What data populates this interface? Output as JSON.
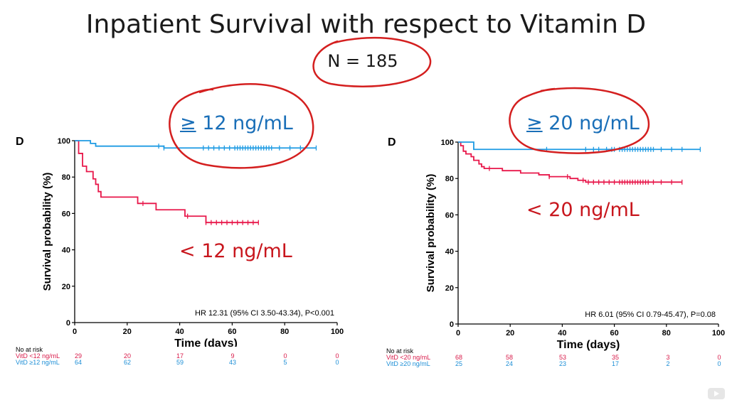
{
  "title": "Inpatient Survival with respect to Vitamin D",
  "n_label": "N = 185",
  "panels": [
    {
      "letter": "D",
      "ylabel": "Survival probability (%)",
      "xlabel": "Time (days)",
      "hr_text": "HR 12.31 (95% CI 3.50-43.34), P<0.001",
      "note_high": {
        "symbol": "≥",
        "rest": " 12 ng/mL"
      },
      "note_low": "< 12 ng/mL",
      "risk": {
        "header": "No at risk",
        "rows": [
          {
            "label": "VitD <12 ng/mL",
            "values": [
              "29",
              "20",
              "17",
              "9",
              "0",
              "0"
            ]
          },
          {
            "label": "VitD ≥12 ng/mL",
            "values": [
              "64",
              "62",
              "59",
              "43",
              "5",
              "0"
            ]
          }
        ]
      }
    },
    {
      "letter": "D",
      "ylabel": "Survival probability (%)",
      "xlabel": "Time (days)",
      "hr_text": "HR 6.01 (95% CI 0.79-45.47), P=0.08",
      "note_high": {
        "symbol": "≥",
        "rest": " 20 ng/mL"
      },
      "note_low": "< 20 ng/mL",
      "risk": {
        "header": "No at risk",
        "rows": [
          {
            "label": "VitD <20 ng/mL",
            "values": [
              "68",
              "58",
              "53",
              "35",
              "3",
              "0"
            ]
          },
          {
            "label": "VitD ≥20 ng/mL",
            "values": [
              "25",
              "24",
              "23",
              "17",
              "2",
              "0"
            ]
          }
        ]
      }
    }
  ],
  "colors": {
    "low": "#e8174a",
    "high": "#1e9be3",
    "annotation": "#d41f1f"
  },
  "chart_data": [
    {
      "type": "line",
      "title": "",
      "xlabel": "Time (days)",
      "ylabel": "Survival probability (%)",
      "xlim": [
        0,
        100
      ],
      "ylim": [
        0,
        100
      ],
      "xticks": [
        0,
        20,
        40,
        60,
        80,
        100
      ],
      "yticks": [
        0,
        20,
        40,
        60,
        80,
        100
      ],
      "series": [
        {
          "name": "VitD <12 ng/mL",
          "color": "#e8174a",
          "steps": [
            [
              0,
              100
            ],
            [
              1.5,
              93
            ],
            [
              3,
              86
            ],
            [
              4.5,
              83
            ],
            [
              7,
              79
            ],
            [
              8,
              76
            ],
            [
              9,
              72
            ],
            [
              10,
              69
            ],
            [
              19,
              69
            ],
            [
              24,
              65.5
            ],
            [
              31,
              65.5
            ],
            [
              31,
              62
            ],
            [
              42,
              62
            ],
            [
              42,
              58.5
            ],
            [
              50,
              58.5
            ],
            [
              50,
              55
            ],
            [
              70,
              55
            ]
          ],
          "censored": [
            26,
            43,
            50,
            52,
            54,
            56,
            58,
            60,
            62,
            64,
            66,
            68,
            70
          ]
        },
        {
          "name": "VitD ≥12 ng/mL",
          "color": "#1e9be3",
          "steps": [
            [
              0,
              100
            ],
            [
              6,
              100
            ],
            [
              6,
              98.5
            ],
            [
              8,
              98.5
            ],
            [
              8,
              97
            ],
            [
              34,
              97
            ],
            [
              34,
              96
            ],
            [
              92,
              96
            ]
          ],
          "censored": [
            32,
            34,
            49,
            51,
            53,
            55,
            57,
            59,
            61,
            62,
            63,
            64,
            65,
            66,
            67,
            68,
            69,
            70,
            71,
            72,
            73,
            74,
            75,
            78,
            82,
            86,
            92
          ]
        }
      ]
    },
    {
      "type": "line",
      "title": "",
      "xlabel": "Time (days)",
      "ylabel": "Survival probability (%)",
      "xlim": [
        0,
        100
      ],
      "ylim": [
        0,
        100
      ],
      "xticks": [
        0,
        20,
        40,
        60,
        80,
        100
      ],
      "yticks": [
        0,
        20,
        40,
        60,
        80,
        100
      ],
      "series": [
        {
          "name": "VitD <20 ng/mL",
          "color": "#e8174a",
          "steps": [
            [
              0,
              100
            ],
            [
              1,
              98
            ],
            [
              2,
              95
            ],
            [
              3,
              93.5
            ],
            [
              5,
              92
            ],
            [
              6,
              90
            ],
            [
              8,
              88
            ],
            [
              9,
              86.5
            ],
            [
              10,
              85.5
            ],
            [
              17,
              85.5
            ],
            [
              17,
              84.3
            ],
            [
              24,
              84.3
            ],
            [
              24,
              83
            ],
            [
              31,
              83
            ],
            [
              31,
              82
            ],
            [
              35,
              82
            ],
            [
              35,
              81
            ],
            [
              43,
              81
            ],
            [
              43,
              80
            ],
            [
              46,
              80
            ],
            [
              46,
              79
            ],
            [
              49,
              79
            ],
            [
              49,
              78
            ],
            [
              86,
              78
            ]
          ],
          "censored": [
            12,
            35,
            42,
            48,
            50,
            52,
            54,
            56,
            58,
            60,
            62,
            63,
            64,
            65,
            66,
            67,
            68,
            69,
            70,
            71,
            72,
            73,
            75,
            78,
            82,
            86
          ]
        },
        {
          "name": "VitD ≥20 ng/mL",
          "color": "#1e9be3",
          "steps": [
            [
              0,
              100
            ],
            [
              6,
              100
            ],
            [
              6,
              96
            ],
            [
              93,
              96
            ]
          ],
          "censored": [
            34,
            49,
            52,
            54,
            57,
            59,
            60,
            62,
            63,
            64,
            65,
            66,
            67,
            68,
            69,
            70,
            71,
            72,
            73,
            74,
            75,
            78,
            82,
            86,
            93
          ]
        }
      ]
    }
  ]
}
